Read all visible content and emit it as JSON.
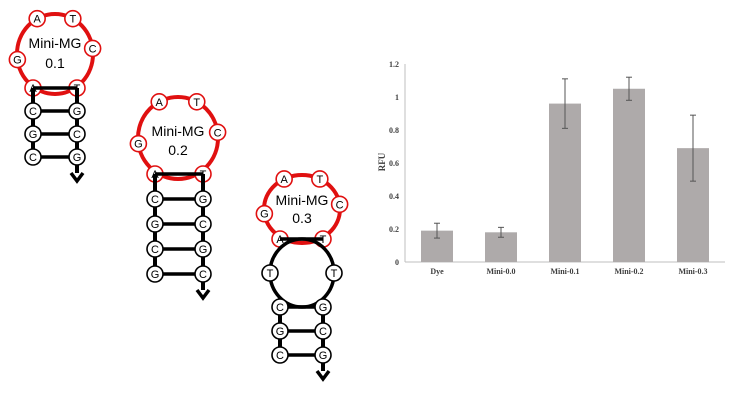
{
  "hairpins": [
    {
      "name_line1": "Mini-MG",
      "name_line2": "0.1",
      "loop_nucleotides": [
        "A",
        "T",
        "C",
        "T",
        "A",
        "G"
      ],
      "stem_pairs": [
        [
          "C",
          "G"
        ],
        [
          "G",
          "C"
        ],
        [
          "C",
          "G"
        ]
      ],
      "inner_loop": []
    },
    {
      "name_line1": "Mini-MG",
      "name_line2": "0.2",
      "loop_nucleotides": [
        "A",
        "T",
        "C",
        "T",
        "A",
        "G"
      ],
      "stem_pairs": [
        [
          "C",
          "G"
        ],
        [
          "G",
          "C"
        ],
        [
          "C",
          "G"
        ],
        [
          "G",
          "C"
        ]
      ],
      "inner_loop": []
    },
    {
      "name_line1": "Mini-MG",
      "name_line2": "0.3",
      "loop_nucleotides": [
        "A",
        "T",
        "C",
        "T",
        "A",
        "G"
      ],
      "stem_pairs": [
        [
          "C",
          "G"
        ],
        [
          "G",
          "C"
        ],
        [
          "C",
          "G"
        ]
      ],
      "inner_loop": [
        "T",
        "T"
      ]
    }
  ],
  "colors": {
    "loop": "#e01010",
    "stem": "#000000",
    "bar": "#aeaaaa",
    "axis": "#bfbfbf"
  },
  "chart_data": {
    "type": "bar",
    "categories": [
      "Dye",
      "Mini-0.0",
      "Mini-0.1",
      "Mini-0.2",
      "Mini-0.3"
    ],
    "values": [
      0.19,
      0.18,
      0.96,
      1.05,
      0.69
    ],
    "errors": [
      0.045,
      0.03,
      0.15,
      0.07,
      0.2
    ],
    "title": "",
    "xlabel": "",
    "ylabel": "RFU",
    "ylim": [
      0,
      1.2
    ],
    "yticks": [
      "0",
      "0.2",
      "0.4",
      "0.6",
      "0.8",
      "1",
      "1.2"
    ],
    "grid": false
  }
}
